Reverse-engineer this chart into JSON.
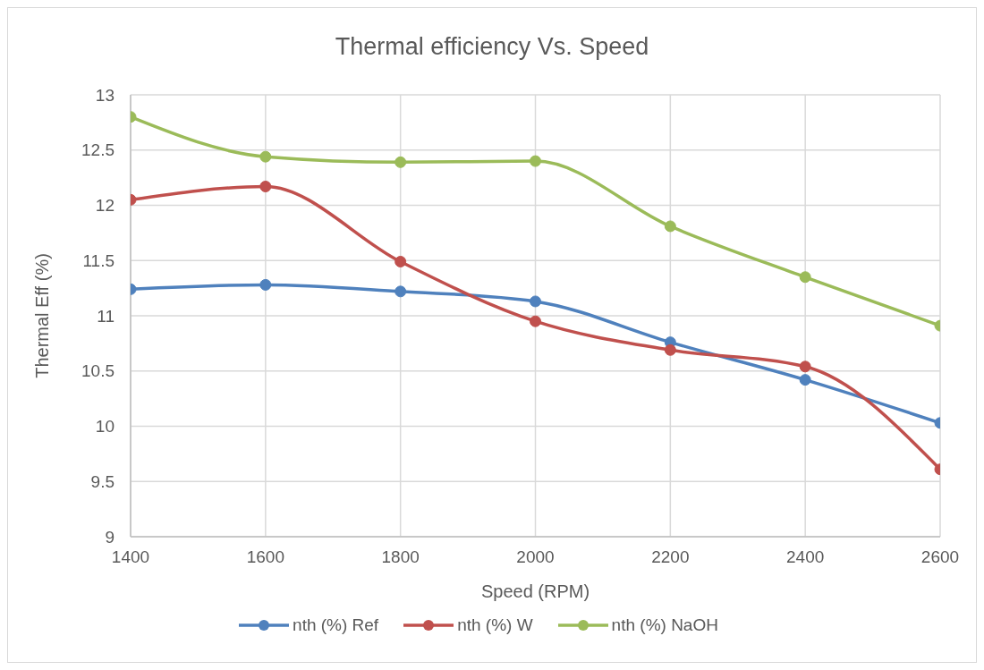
{
  "chart_data": {
    "type": "line",
    "title": "Thermal efficiency Vs. Speed",
    "xlabel": "Speed (RPM)",
    "ylabel": "Thermal Eff (%)",
    "x": [
      1400,
      1600,
      1800,
      2000,
      2200,
      2400,
      2600
    ],
    "series": [
      {
        "name": "nth (%) Ref",
        "color": "#4f81bd",
        "values": [
          11.24,
          11.28,
          11.22,
          11.13,
          10.76,
          10.42,
          10.03
        ]
      },
      {
        "name": "nth (%) W",
        "color": "#c0504d",
        "values": [
          12.05,
          12.17,
          11.49,
          10.95,
          10.69,
          10.54,
          9.61
        ]
      },
      {
        "name": "nth (%) NaOH",
        "color": "#9bbb59",
        "values": [
          12.8,
          12.44,
          12.39,
          12.4,
          11.81,
          11.35,
          10.91
        ]
      }
    ],
    "xlim": [
      1400,
      2600
    ],
    "xticks": [
      1400,
      1600,
      1800,
      2000,
      2200,
      2400,
      2600
    ],
    "ylim": [
      9,
      13
    ],
    "yticks": [
      9,
      9.5,
      10,
      10.5,
      11,
      11.5,
      12,
      12.5,
      13
    ],
    "grid": true,
    "legend": "bottom",
    "marker": "circle",
    "line_style": "solid"
  }
}
